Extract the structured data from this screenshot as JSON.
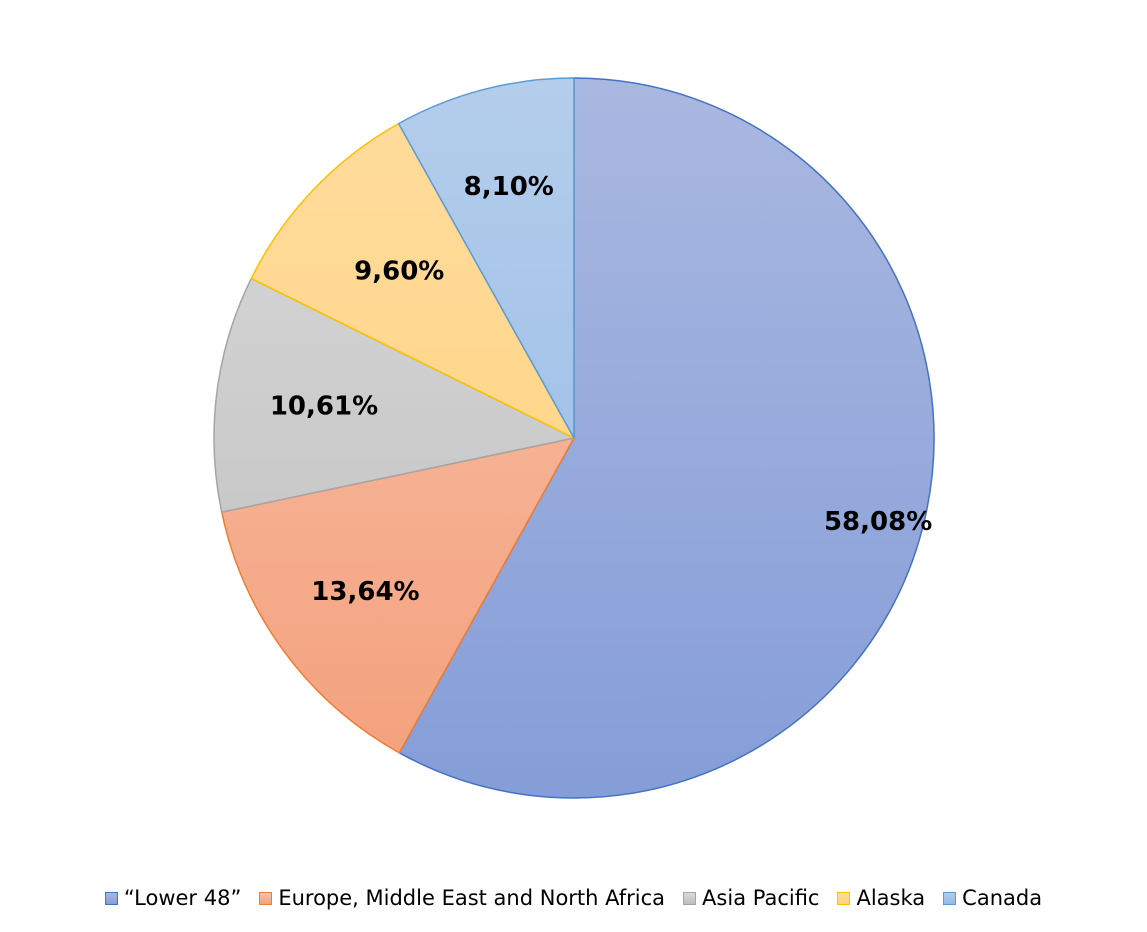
{
  "chart_data": {
    "type": "pie",
    "categories": [
      "“Lower 48”",
      "Europe, Middle East and North Africa",
      "Asia Pacific",
      "Alaska",
      "Canada"
    ],
    "values": [
      58.08,
      13.64,
      10.61,
      9.6,
      8.1
    ],
    "labels": [
      "58,08%",
      "13,64%",
      "10,61%",
      "9,60%",
      "8,10%"
    ],
    "start_angle_deg": 0,
    "direction": "clockwise",
    "legend_position": "bottom",
    "colors": {
      "fill_top": [
        "#A9B8E0",
        "#F7C2AD",
        "#DADADA",
        "#FFDC9E",
        "#B4CDEB"
      ],
      "fill_bottom": [
        "#859DD8",
        "#F4A07B",
        "#BDBDBD",
        "#FFD27A",
        "#93B9E6"
      ],
      "stroke": [
        "#4472C4",
        "#ED7D31",
        "#A5A5A5",
        "#FFC000",
        "#5B9BD5"
      ]
    }
  }
}
